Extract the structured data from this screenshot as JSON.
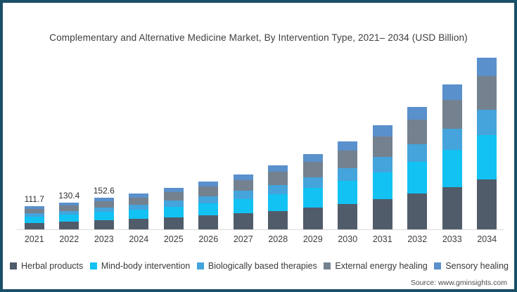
{
  "title": "Complementary and Alternative Medicine Market, By Intervention Type, 2021– 2034 (USD Billion)",
  "source": "Source: www.gminsights.com",
  "colors": {
    "frame_border": "#1a4f68",
    "axis_line": "#dcdcdc",
    "title_text": "#3f3f3f",
    "label_text": "#2f2f2f"
  },
  "chart_data": {
    "type": "bar",
    "stacked": true,
    "title": "Complementary and Alternative Medicine Market, By Intervention Type, 2021– 2034 (USD Billion)",
    "xlabel": "",
    "ylabel": "USD Billion",
    "ylim": [
      0,
      860
    ],
    "grid": false,
    "legend_position": "bottom",
    "categories": [
      "2021",
      "2022",
      "2023",
      "2024",
      "2025",
      "2026",
      "2027",
      "2028",
      "2029",
      "2030",
      "2031",
      "2032",
      "2033",
      "2034"
    ],
    "totals": [
      111.7,
      130.4,
      152.6,
      173.0,
      201.0,
      232.0,
      268.0,
      312.0,
      365.0,
      427.0,
      505.0,
      596.0,
      703.0,
      833.0
    ],
    "data_labels": {
      "2021": "111.7",
      "2022": "130.4",
      "2023": "152.6"
    },
    "series": [
      {
        "name": "Herbal products",
        "color": "#515c6a",
        "values": [
          32.5,
          37.8,
          44.3,
          50.1,
          58.3,
          67.3,
          77.7,
          90.5,
          105.9,
          123.9,
          146.5,
          172.8,
          203.9,
          241.5
        ]
      },
      {
        "name": "Mind-body intervention",
        "color": "#12c2f3",
        "values": [
          29.0,
          33.9,
          39.7,
          45.0,
          52.3,
          60.3,
          69.7,
          81.1,
          94.9,
          111.0,
          131.3,
          155.0,
          182.8,
          216.6
        ]
      },
      {
        "name": "Biologically based therapies",
        "color": "#44a4db",
        "values": [
          16.2,
          18.9,
          22.1,
          25.1,
          29.1,
          33.6,
          38.9,
          45.2,
          52.9,
          61.9,
          73.2,
          86.4,
          101.9,
          120.8
        ]
      },
      {
        "name": "External energy healing",
        "color": "#74818f",
        "values": [
          22.3,
          26.1,
          30.5,
          34.6,
          40.2,
          46.4,
          53.6,
          62.4,
          73.0,
          85.4,
          101.0,
          119.2,
          140.6,
          166.6
        ]
      },
      {
        "name": "Sensory healing",
        "color": "#5a90cc",
        "values": [
          11.7,
          13.7,
          16.0,
          18.2,
          21.1,
          24.4,
          28.1,
          32.8,
          38.3,
          44.8,
          53.0,
          62.6,
          73.8,
          87.5
        ]
      }
    ]
  }
}
